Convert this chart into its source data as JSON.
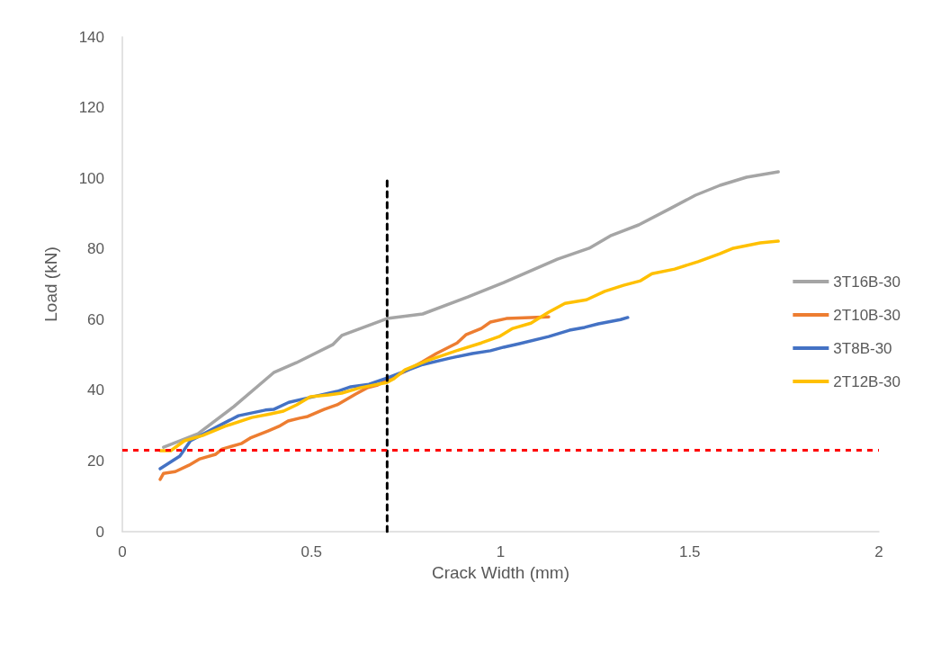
{
  "chart_data": {
    "type": "line",
    "xlabel": "Crack Width (mm)",
    "ylabel": "Load (kN)",
    "xlim": [
      0,
      2
    ],
    "xticks": [
      0,
      0.5,
      1,
      1.5,
      2
    ],
    "ylim": [
      0,
      140
    ],
    "yticks": [
      0,
      20,
      40,
      60,
      80,
      100,
      120,
      140
    ],
    "grid": false,
    "legend": "right",
    "marker": "none",
    "line_style": "solid",
    "series": [
      {
        "name": "3T16B-30",
        "color": "#a5a5a5",
        "x": [
          0.109,
          0.2,
          0.295,
          0.4,
          0.46,
          0.556,
          0.58,
          0.7,
          0.794,
          0.913,
          1.008,
          1.15,
          1.234,
          1.29,
          1.365,
          1.448,
          1.515,
          1.58,
          1.65,
          1.734
        ],
        "values": [
          23.9,
          27.7,
          35.4,
          45,
          47.8,
          52.9,
          55.5,
          60.3,
          61.6,
          66.4,
          70.5,
          77.1,
          80.2,
          83.7,
          86.8,
          91.4,
          95.2,
          98,
          100.3,
          101.8
        ]
      },
      {
        "name": "2T10B-30",
        "color": "#ed7d31",
        "x": [
          0.1,
          0.109,
          0.14,
          0.176,
          0.205,
          0.247,
          0.264,
          0.314,
          0.338,
          0.385,
          0.414,
          0.438,
          0.468,
          0.49,
          0.533,
          0.568,
          0.616,
          0.647,
          0.675,
          0.711,
          0.747,
          0.794,
          0.83,
          0.885,
          0.908,
          0.949,
          0.973,
          1.015,
          1.127
        ],
        "values": [
          14.8,
          16.5,
          17,
          18.8,
          20.6,
          21.9,
          23.4,
          24.9,
          26.5,
          28.5,
          29.8,
          31.3,
          32.1,
          32.6,
          34.6,
          35.9,
          38.9,
          40.7,
          41.5,
          43.5,
          45.3,
          48.1,
          50.4,
          53.4,
          55.7,
          57.5,
          59.3,
          60.3,
          60.8
        ]
      },
      {
        "name": "3T8B-30",
        "color": "#4472c4",
        "x": [
          0.1,
          0.152,
          0.18,
          0.247,
          0.307,
          0.378,
          0.4,
          0.44,
          0.485,
          0.568,
          0.604,
          0.652,
          0.7,
          0.794,
          0.866,
          0.925,
          0.973,
          1.008,
          1.05,
          1.127,
          1.182,
          1.222,
          1.258,
          1.317,
          1.336
        ],
        "values": [
          17.8,
          21.4,
          25.7,
          29.5,
          32.8,
          34.4,
          34.6,
          36.6,
          37.7,
          39.7,
          41,
          41.7,
          43.5,
          47.3,
          49.1,
          50.4,
          51.2,
          52.2,
          53.2,
          55.2,
          57,
          57.8,
          58.8,
          60,
          60.6
        ]
      },
      {
        "name": "2T12B-30",
        "color": "#ffc000",
        "x": [
          0.1,
          0.128,
          0.164,
          0.212,
          0.271,
          0.342,
          0.39,
          0.426,
          0.461,
          0.497,
          0.545,
          0.58,
          0.628,
          0.699,
          0.718,
          0.747,
          0.806,
          0.889,
          0.949,
          0.996,
          1.032,
          1.08,
          1.127,
          1.17,
          1.227,
          1.275,
          1.325,
          1.37,
          1.4,
          1.46,
          1.522,
          1.579,
          1.615,
          1.686,
          1.734
        ],
        "values": [
          22.9,
          22.9,
          25.7,
          27.2,
          29.8,
          32.3,
          33.3,
          34.1,
          35.9,
          38.2,
          38.7,
          39.2,
          40.7,
          42.2,
          43.3,
          45.8,
          48.4,
          51.4,
          53.4,
          55.2,
          57.5,
          59,
          62.1,
          64.6,
          65.6,
          68,
          69.7,
          71,
          73,
          74.3,
          76.4,
          78.6,
          80.2,
          81.7,
          82.2
        ]
      },
      {
        "type": "line",
        "color": "#000000",
        "line_style": "dashed",
        "x": [
          0.7,
          0.7
        ],
        "values": [
          0,
          100
        ]
      }
    ],
    "ref_lines": [
      {
        "axis": "y",
        "value": 23,
        "color": "#ff0000",
        "line_style": "dashed"
      }
    ]
  }
}
